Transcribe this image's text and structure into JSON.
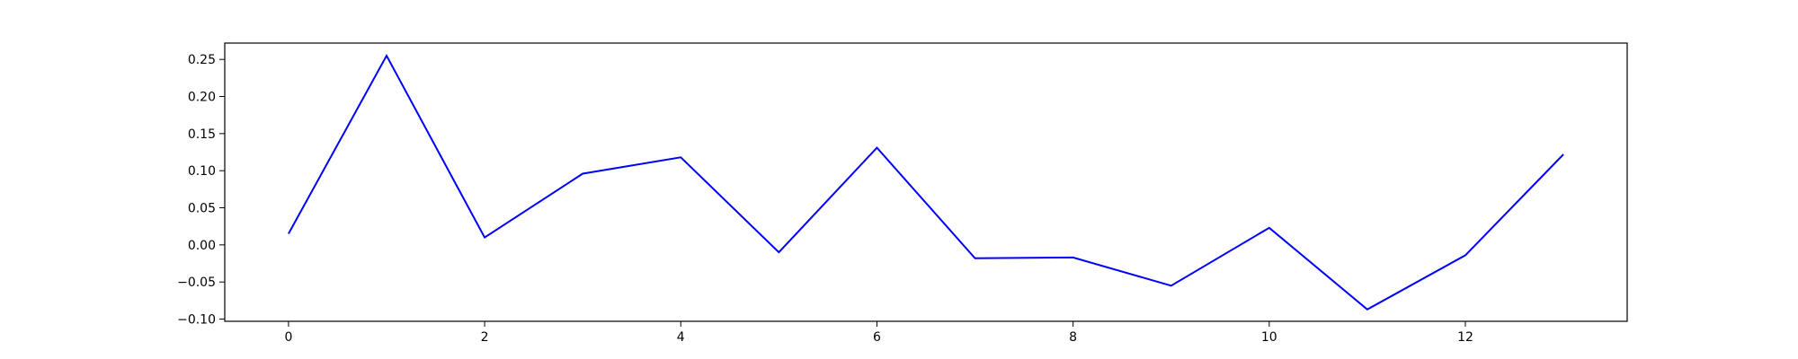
{
  "chart_data": {
    "type": "line",
    "title": "",
    "xlabel": "",
    "ylabel": "",
    "x": [
      0,
      1,
      2,
      3,
      4,
      5,
      6,
      7,
      8,
      9,
      10,
      11,
      12,
      13
    ],
    "series": [
      {
        "color": "#0000ff",
        "values": [
          0.015,
          0.255,
          0.01,
          0.096,
          0.118,
          -0.01,
          0.131,
          -0.018,
          -0.017,
          -0.055,
          0.023,
          -0.087,
          -0.014,
          0.122
        ]
      }
    ],
    "xlim": [
      -0.65,
      13.65
    ],
    "ylim": [
      -0.103,
      0.272
    ],
    "xticks": [
      0,
      2,
      4,
      6,
      8,
      10,
      12
    ],
    "xtick_labels": [
      "0",
      "2",
      "4",
      "6",
      "8",
      "10",
      "12"
    ],
    "yticks": [
      -0.1,
      -0.05,
      0.0,
      0.05,
      0.1,
      0.15,
      0.2,
      0.25
    ],
    "ytick_labels": [
      "−0.10",
      "−0.05",
      "0.00",
      "0.05",
      "0.10",
      "0.15",
      "0.20",
      "0.25"
    ],
    "grid": false,
    "legend": false
  }
}
